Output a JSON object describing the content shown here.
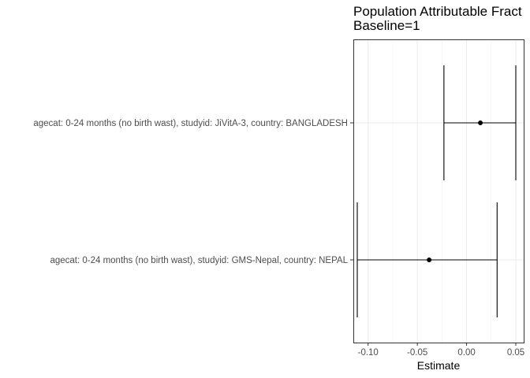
{
  "chart_data": {
    "type": "forest",
    "title": "Population Attributable Fract",
    "subtitle": "Baseline=1",
    "xlabel": "Estimate",
    "ylabel": "",
    "xlim": [
      -0.115,
      0.058
    ],
    "xticks": [
      -0.1,
      -0.05,
      0.0,
      0.05
    ],
    "xtick_labels": [
      "-0.10",
      "-0.05",
      "0.00",
      "0.05"
    ],
    "grid": true,
    "rows": [
      {
        "label": "agecat: 0-24 months (no birth wast), studyid: JiVitA-3, country: BANGLADESH",
        "estimate": 0.014,
        "lower": -0.023,
        "upper": 0.05
      },
      {
        "label": "agecat: 0-24 months (no birth wast), studyid: GMS-Nepal, country: NEPAL",
        "estimate": -0.038,
        "lower": -0.111,
        "upper": 0.031
      }
    ]
  }
}
